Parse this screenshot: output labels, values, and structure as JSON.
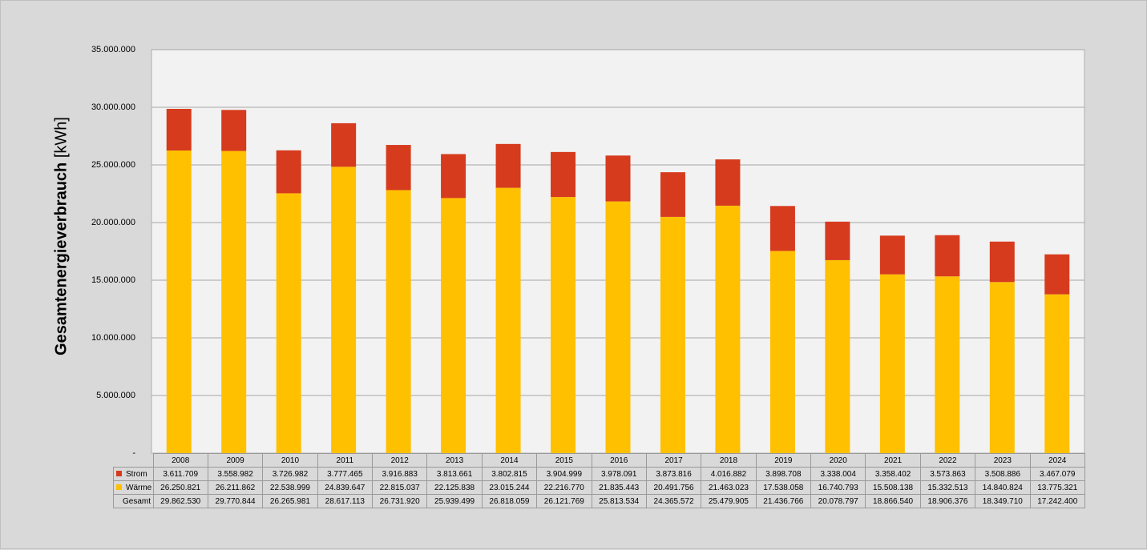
{
  "chart_data": {
    "type": "bar",
    "stacked": true,
    "ylabel_main": "Gesamtenergieverbrauch",
    "ylabel_unit": "[kWh]",
    "ylim": [
      0,
      35000000
    ],
    "yticks": [
      "-",
      "5.000.000",
      "10.000.000",
      "15.000.000",
      "20.000.000",
      "25.000.000",
      "30.000.000",
      "35.000.000"
    ],
    "grid": true,
    "legend": "data-table",
    "categories": [
      "2008",
      "2009",
      "2010",
      "2011",
      "2012",
      "2013",
      "2014",
      "2015",
      "2016",
      "2017",
      "2018",
      "2019",
      "2020",
      "2021",
      "2022",
      "2023",
      "2024"
    ],
    "series": [
      {
        "name": "Wärme",
        "color": "#ffc000",
        "values": [
          26250821,
          26211862,
          22538999,
          24839647,
          22815037,
          22125838,
          23015244,
          22216770,
          21835443,
          20491756,
          21463023,
          17538058,
          16740793,
          15508138,
          15332513,
          14840824,
          13775321
        ]
      },
      {
        "name": "Strom",
        "color": "#d63b1e",
        "values": [
          3611709,
          3558982,
          3726982,
          3777465,
          3916883,
          3813661,
          3802815,
          3904999,
          3978091,
          3873816,
          4016882,
          3898708,
          3338004,
          3358402,
          3573863,
          3508886,
          3467079
        ]
      }
    ],
    "total_name": "Gesamt",
    "totals": [
      29862530,
      29770844,
      26265981,
      28617113,
      26731920,
      25939499,
      26818059,
      26121769,
      25813534,
      24365572,
      25479905,
      21436766,
      20078797,
      18866540,
      18906376,
      18349710,
      17242400
    ]
  }
}
